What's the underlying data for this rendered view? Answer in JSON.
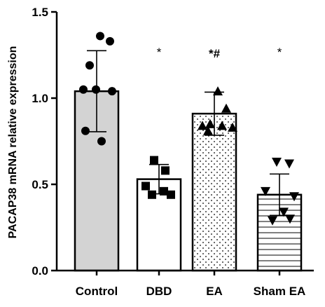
{
  "chart_data": {
    "type": "bar",
    "title": "",
    "xlabel": "",
    "ylabel": "PACAP38 mRNA relative expression",
    "ylim": [
      0,
      1.5
    ],
    "yticks": [
      "0.0",
      "0.5",
      "1.0",
      "1.5"
    ],
    "grid": false,
    "categories": [
      "Control",
      "DBD",
      "EA",
      "Sham EA"
    ],
    "values": [
      1.04,
      0.53,
      0.91,
      0.44
    ],
    "error": [
      0.235,
      0.085,
      0.125,
      0.12
    ],
    "annotations": [
      "",
      "*",
      "*#",
      "*"
    ],
    "points": [
      [
        1.36,
        1.33,
        1.19,
        1.05,
        1.05,
        1.04,
        0.81,
        0.75
      ],
      [
        0.64,
        0.58,
        0.49,
        0.46,
        0.44,
        0.44
      ],
      [
        1.04,
        0.94,
        0.85,
        0.84,
        0.84,
        0.83,
        0.81
      ],
      [
        0.63,
        0.62,
        0.46,
        0.43,
        0.34,
        0.29,
        0.3
      ]
    ],
    "markers": [
      "circle",
      "square",
      "triangle-up",
      "triangle-down"
    ],
    "bar_fills": [
      "#d3d3d3",
      "#ffffff",
      "dots",
      "horizontal-lines"
    ],
    "colors": {
      "bar_edge": "#000000",
      "marker": "#000000"
    }
  }
}
